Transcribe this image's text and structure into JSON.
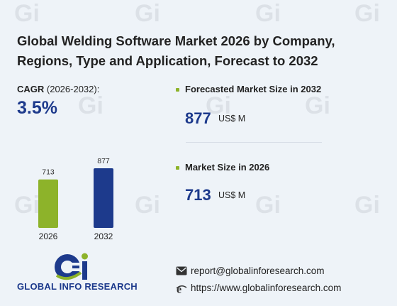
{
  "title_line1": "Global Welding Software Market 2026 by Company,",
  "title_line2": "Regions, Type and Application, Forecast to 2032",
  "cagr": {
    "label_prefix": "CAGR",
    "label_period": " (2026-2032):",
    "value": "3.5%"
  },
  "chart_data": {
    "type": "bar",
    "categories": [
      "2026",
      "2032"
    ],
    "values": [
      713,
      877
    ],
    "value_labels": [
      "713",
      "877"
    ],
    "colors": [
      "#8db32a",
      "#1d3a8c"
    ],
    "title": "",
    "xlabel": "",
    "ylabel": ""
  },
  "kpis": [
    {
      "label": "Forecasted Market Size in 2032",
      "value": "877",
      "unit": "US$ M"
    },
    {
      "label": "Market Size in 2026",
      "value": "713",
      "unit": "US$ M"
    }
  ],
  "brand": {
    "logo_text": "GLOBAL INFO RESEARCH"
  },
  "contact": {
    "email": "report@globalinforesearch.com",
    "website": "https://www.globalinforesearch.com"
  },
  "colors": {
    "accent_green": "#8db32a",
    "accent_blue": "#1d3a8c",
    "background": "#eef3f8"
  },
  "icons": [
    "email-icon",
    "web-icon",
    "bullet-icon"
  ]
}
